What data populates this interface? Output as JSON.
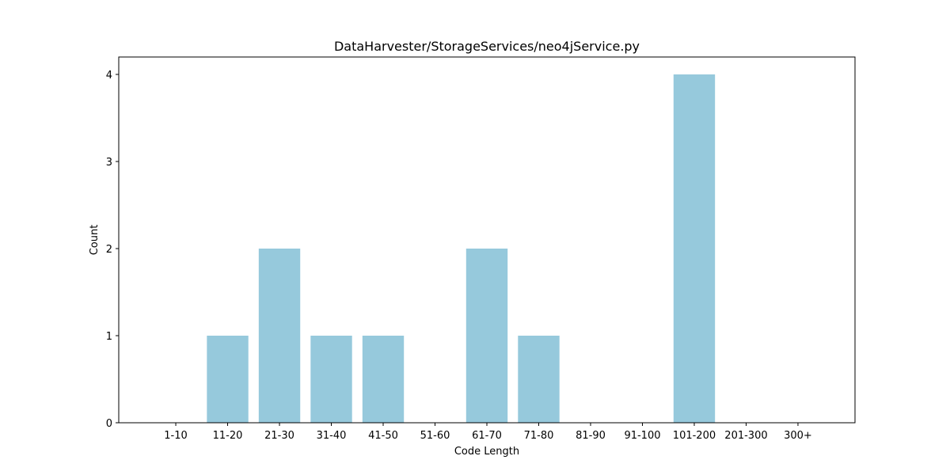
{
  "chart_data": {
    "type": "bar",
    "title": "DataHarvester/StorageServices/neo4jService.py",
    "xlabel": "Code Length",
    "ylabel": "Count",
    "categories": [
      "1-10",
      "11-20",
      "21-30",
      "31-40",
      "41-50",
      "51-60",
      "61-70",
      "71-80",
      "81-90",
      "91-100",
      "101-200",
      "201-300",
      "300+"
    ],
    "values": [
      0,
      1,
      2,
      1,
      1,
      0,
      2,
      1,
      0,
      0,
      4,
      0,
      0
    ],
    "ylim": [
      0,
      4.2
    ],
    "yticks": [
      0,
      1,
      2,
      3,
      4
    ],
    "bar_color": "#96c9dc",
    "grid": false,
    "legend": "none"
  }
}
